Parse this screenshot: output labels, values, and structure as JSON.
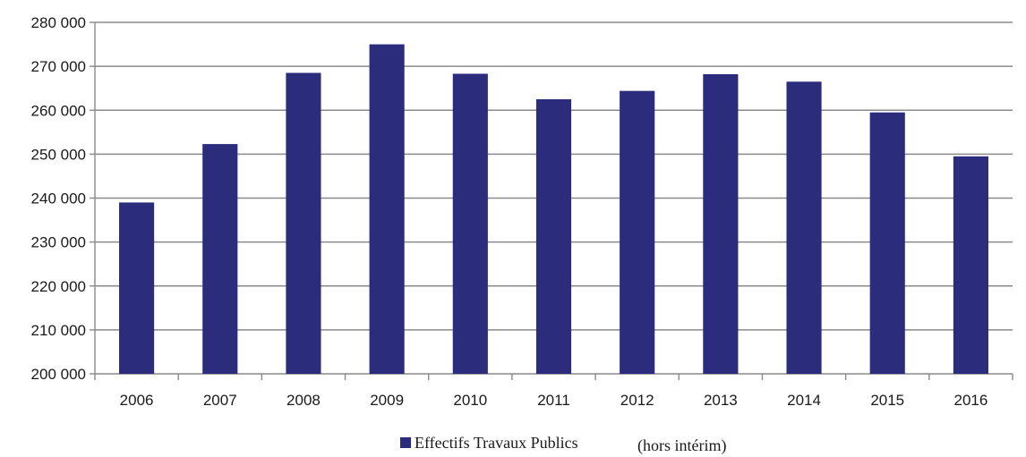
{
  "chart_data": {
    "type": "bar",
    "title": "",
    "xlabel": "",
    "ylabel": "",
    "categories": [
      "2006",
      "2007",
      "2008",
      "2009",
      "2010",
      "2011",
      "2012",
      "2013",
      "2014",
      "2015",
      "2016"
    ],
    "series": [
      {
        "name": "Effectifs Travaux Publics",
        "values": [
          239000,
          252300,
          268500,
          275000,
          268300,
          262500,
          264400,
          268200,
          266500,
          259500,
          249500
        ]
      }
    ],
    "ylim": [
      200000,
      280000
    ],
    "yticks": [
      "200 000",
      "210 000",
      "220 000",
      "230 000",
      "240 000",
      "250 000",
      "260 000",
      "270 000",
      "280 000"
    ],
    "grid": "horizontal",
    "legend": {
      "placement": "bottom-center",
      "label": "Effectifs Travaux Publics",
      "suffix": "(hors intérim)"
    },
    "colors": {
      "bar": "#2b2c7c",
      "grid": "#8a8a8a",
      "axis": "#8a8a8a"
    }
  }
}
